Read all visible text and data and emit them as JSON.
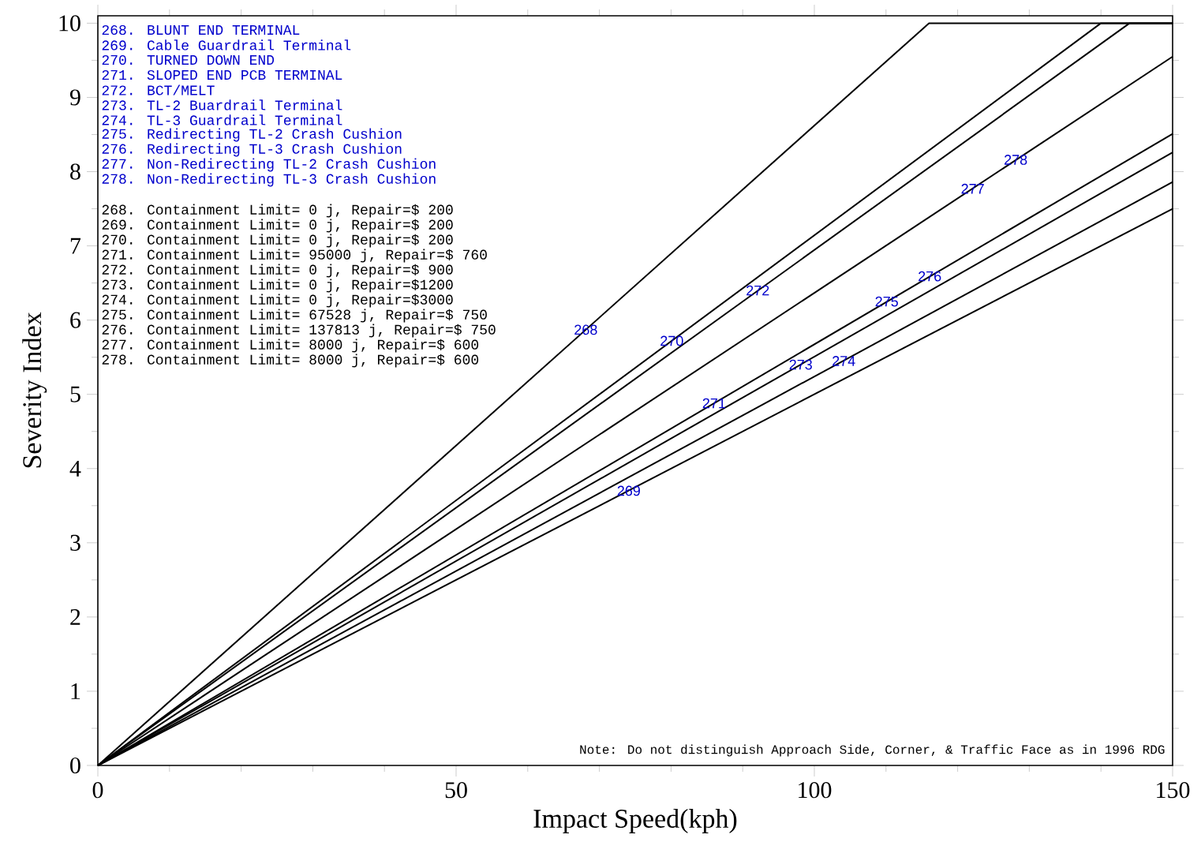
{
  "chart_data": {
    "type": "line",
    "xlabel": "Impact Speed(kph)",
    "ylabel": "Severity Index",
    "xlim": [
      0,
      150
    ],
    "ylim": [
      0,
      10.1
    ],
    "xticks": [
      0,
      50,
      100,
      150
    ],
    "yticks": [
      0,
      1,
      2,
      3,
      4,
      5,
      6,
      7,
      8,
      9,
      10
    ],
    "marker": "none",
    "series": [
      {
        "color": "#000000",
        "x": [
          0,
          116,
          150
        ],
        "values": [
          0,
          10,
          10
        ]
      },
      {
        "color": "#000000",
        "x": [
          0,
          140,
          150
        ],
        "values": [
          0,
          10,
          10
        ]
      },
      {
        "color": "#000000",
        "x": [
          0,
          144,
          150
        ],
        "values": [
          0,
          10,
          10
        ]
      },
      {
        "color": "#000000",
        "x": [
          0,
          150
        ],
        "values": [
          0,
          9.55
        ]
      },
      {
        "color": "#000000",
        "x": [
          0,
          150
        ],
        "values": [
          0,
          8.51
        ]
      },
      {
        "color": "#000000",
        "x": [
          0,
          150
        ],
        "values": [
          0,
          8.26
        ]
      },
      {
        "color": "#000000",
        "x": [
          0,
          150
        ],
        "values": [
          0,
          7.86
        ]
      },
      {
        "color": "#000000",
        "x": [
          0,
          150
        ],
        "values": [
          0,
          7.5
        ]
      }
    ],
    "annotations": [
      {
        "text": "268",
        "x": 68.1,
        "y": 5.87
      },
      {
        "text": "269",
        "x": 74.1,
        "y": 3.7
      },
      {
        "text": "270",
        "x": 80.1,
        "y": 5.72
      },
      {
        "text": "271",
        "x": 86.0,
        "y": 4.88
      },
      {
        "text": "272",
        "x": 92.1,
        "y": 6.4
      },
      {
        "text": "273",
        "x": 98.1,
        "y": 5.4
      },
      {
        "text": "274",
        "x": 104.1,
        "y": 5.45
      },
      {
        "text": "275",
        "x": 110.1,
        "y": 6.25
      },
      {
        "text": "276",
        "x": 116.1,
        "y": 6.59
      },
      {
        "text": "277",
        "x": 122.1,
        "y": 7.77
      },
      {
        "text": "278",
        "x": 128.1,
        "y": 8.16
      },
      "268. BLUNT END TERMINAL",
      "269. Cable Guardrail Terminal",
      "270. TURNED DOWN END",
      "271. SLOPED END PCB TERMINAL",
      "272. BCT/MELT",
      "273. TL-2 Buardrail Terminal",
      "274. TL-3 Guardrail Terminal",
      "275. Redirecting TL-2 Crash Cushion",
      "276. Redirecting TL-3 Crash Cushion",
      "277. Non-Redirecting TL-2 Crash Cushion",
      "278. Non-Redirecting TL-3 Crash Cushion",
      "268. Containment Limit= 0 j, Repair=$ 200",
      "269. Containment Limit= 0 j, Repair=$ 200",
      "270. Containment Limit= 0 j, Repair=$ 200",
      "271. Containment Limit= 95000 j, Repair=$ 760",
      "272. Containment Limit= 0 j, Repair=$ 900",
      "273. Containment Limit= 0 j, Repair=$1200",
      "274. Containment Limit= 0 j, Repair=$3000",
      "275. Containment Limit= 67528 j, Repair=$ 750",
      "276. Containment Limit= 137813 j, Repair=$ 750",
      "277. Containment Limit= 8000 j, Repair=$ 600",
      "278. Containment Limit= 8000 j, Repair=$ 600",
      "Note: Do not distinguish Approach Side, Corner, & Traffic Face as in 1996 RDG"
    ]
  }
}
